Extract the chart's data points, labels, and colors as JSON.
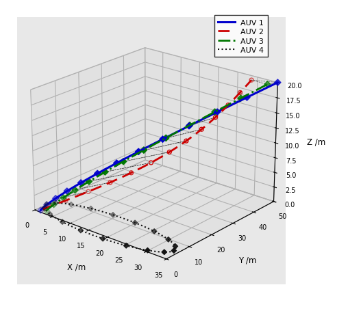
{
  "xlabel": "X /m",
  "ylabel": "Y /m",
  "zlabel": "Z /m",
  "xlim": [
    0,
    35
  ],
  "ylim": [
    0,
    50
  ],
  "zlim": [
    0,
    20
  ],
  "xticks": [
    0,
    5,
    10,
    15,
    20,
    25,
    30,
    35
  ],
  "yticks": [
    0,
    10,
    20,
    30,
    40,
    50
  ],
  "zticks": [
    0,
    2.5,
    5.0,
    7.5,
    10.0,
    12.5,
    15.0,
    17.5,
    20.0
  ],
  "legend_labels": [
    "AUV 1",
    "AUV 2",
    "AUV 3",
    "AUV 4"
  ],
  "auv1_color": "#0000cc",
  "auv2_color": "#cc0000",
  "auv3_color": "#007700",
  "auv4_color": "#111111",
  "view_elev": 22,
  "view_azim": -50,
  "pane_color": "#e8e8e8",
  "fig_color": "#ffffff"
}
